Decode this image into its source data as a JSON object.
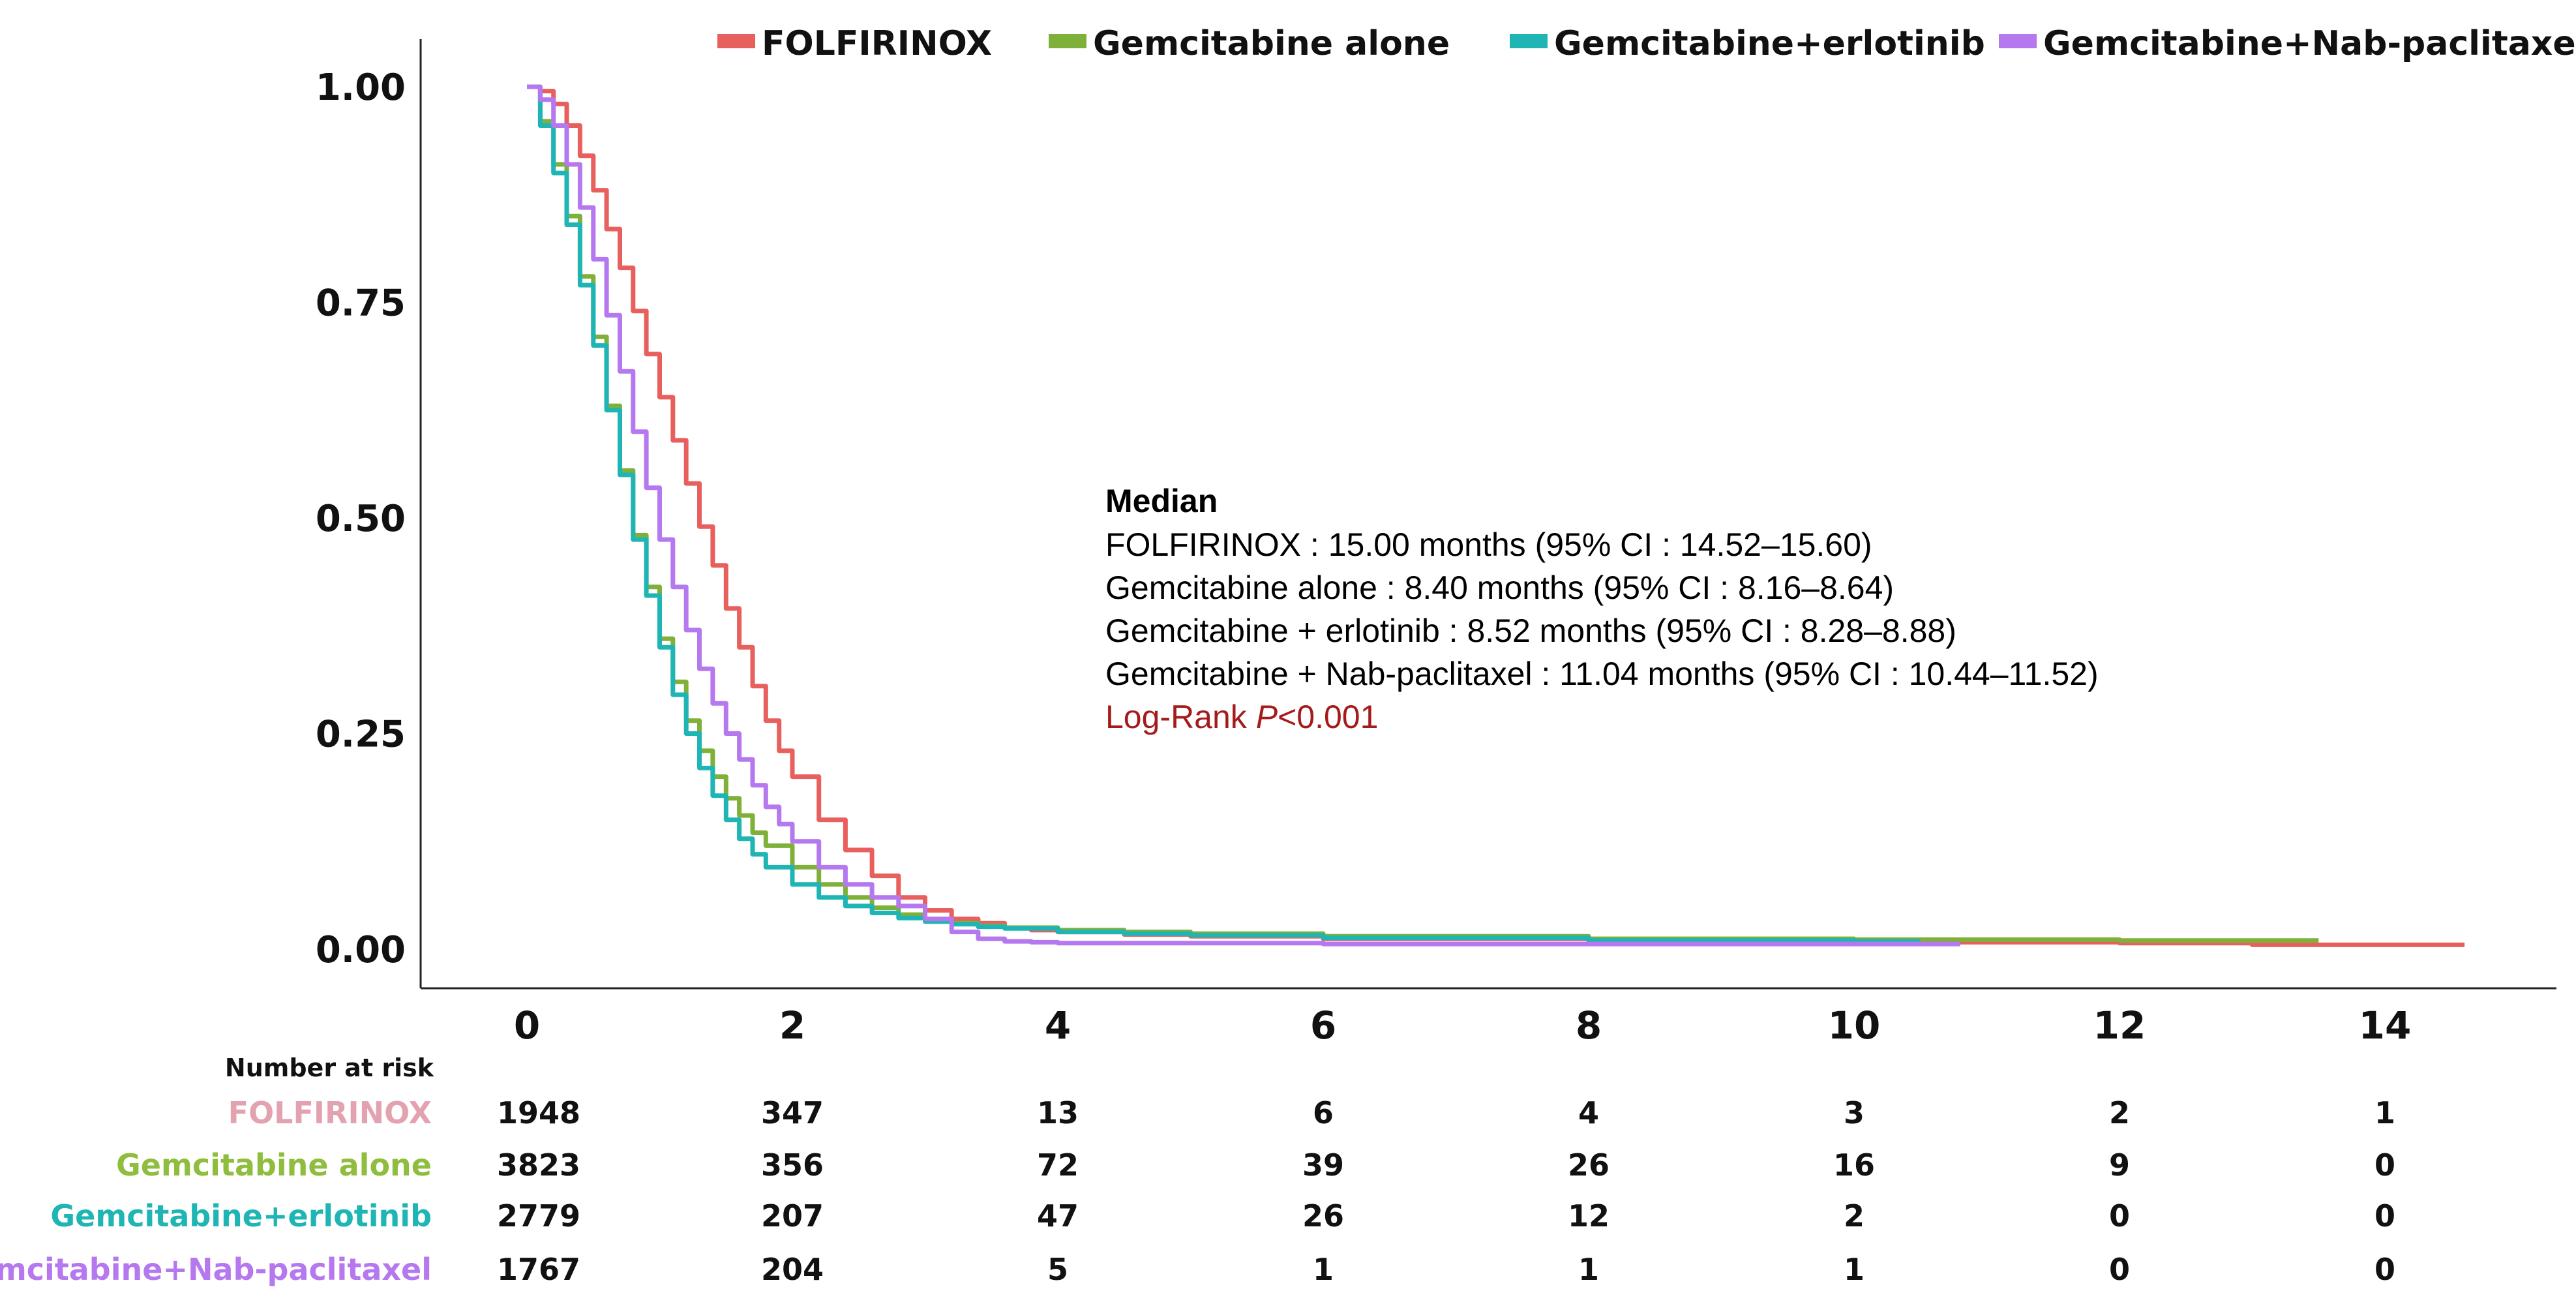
{
  "chart_data": {
    "type": "line",
    "title": "",
    "xlabel": "",
    "ylabel": "",
    "xlim": [
      0,
      14.6
    ],
    "ylim": [
      0,
      1
    ],
    "x_ticks": [
      "0",
      "2",
      "4",
      "6",
      "8",
      "10",
      "12",
      "14"
    ],
    "x_tick_values": [
      0,
      2,
      4,
      6,
      8,
      10,
      12,
      14
    ],
    "y_ticks": [
      "0.00",
      "0.25",
      "0.50",
      "0.75",
      "1.00"
    ],
    "y_tick_values": [
      0,
      0.25,
      0.5,
      0.75,
      1.0
    ],
    "legend_position": "top",
    "series": [
      {
        "name": "FOLFIRINOX",
        "color": "#e8605e",
        "x": [
          0,
          0.1,
          0.2,
          0.3,
          0.4,
          0.5,
          0.6,
          0.7,
          0.8,
          0.9,
          1.0,
          1.1,
          1.2,
          1.3,
          1.4,
          1.5,
          1.6,
          1.7,
          1.8,
          1.9,
          2.0,
          2.2,
          2.4,
          2.6,
          2.8,
          3.0,
          3.2,
          3.4,
          3.6,
          3.8,
          4.0,
          4.5,
          5.0,
          6.0,
          8.0,
          10.0,
          12.0,
          13.0,
          14.0,
          14.6
        ],
        "y": [
          1.0,
          0.995,
          0.98,
          0.955,
          0.92,
          0.88,
          0.835,
          0.79,
          0.74,
          0.69,
          0.64,
          0.59,
          0.54,
          0.49,
          0.445,
          0.395,
          0.35,
          0.305,
          0.265,
          0.23,
          0.2,
          0.15,
          0.115,
          0.085,
          0.06,
          0.045,
          0.035,
          0.03,
          0.025,
          0.022,
          0.02,
          0.017,
          0.015,
          0.012,
          0.01,
          0.008,
          0.007,
          0.005,
          0.005,
          0.005
        ]
      },
      {
        "name": "Gemcitabine alone",
        "color": "#7fb13a",
        "x": [
          0,
          0.1,
          0.2,
          0.3,
          0.4,
          0.5,
          0.6,
          0.7,
          0.8,
          0.9,
          1.0,
          1.1,
          1.2,
          1.3,
          1.4,
          1.5,
          1.6,
          1.7,
          1.8,
          2.0,
          2.2,
          2.4,
          2.6,
          2.8,
          3.0,
          3.2,
          3.4,
          3.6,
          4.0,
          4.5,
          5.0,
          6.0,
          8.0,
          10.0,
          12.0,
          13.5
        ],
        "y": [
          1.0,
          0.96,
          0.91,
          0.85,
          0.78,
          0.71,
          0.63,
          0.555,
          0.48,
          0.42,
          0.36,
          0.31,
          0.265,
          0.23,
          0.2,
          0.175,
          0.155,
          0.135,
          0.12,
          0.095,
          0.075,
          0.06,
          0.048,
          0.04,
          0.034,
          0.03,
          0.027,
          0.025,
          0.022,
          0.02,
          0.018,
          0.015,
          0.012,
          0.011,
          0.01,
          0.01
        ]
      },
      {
        "name": "Gemcitabine+erlotinib",
        "color": "#1fb5b5",
        "x": [
          0,
          0.1,
          0.2,
          0.3,
          0.4,
          0.5,
          0.6,
          0.7,
          0.8,
          0.9,
          1.0,
          1.1,
          1.2,
          1.3,
          1.4,
          1.5,
          1.6,
          1.7,
          1.8,
          2.0,
          2.2,
          2.4,
          2.6,
          2.8,
          3.0,
          3.2,
          3.4,
          3.6,
          4.0,
          4.5,
          5.0,
          6.0,
          8.0,
          10.0,
          10.5
        ],
        "y": [
          1.0,
          0.955,
          0.9,
          0.84,
          0.77,
          0.7,
          0.625,
          0.55,
          0.475,
          0.41,
          0.35,
          0.295,
          0.25,
          0.21,
          0.178,
          0.15,
          0.128,
          0.11,
          0.095,
          0.075,
          0.06,
          0.05,
          0.042,
          0.036,
          0.032,
          0.029,
          0.026,
          0.024,
          0.02,
          0.018,
          0.016,
          0.013,
          0.01,
          0.009,
          0.009
        ]
      },
      {
        "name": "Gemcitabine+Nab-paclitaxel",
        "color": "#b678ef",
        "x": [
          0,
          0.1,
          0.2,
          0.3,
          0.4,
          0.5,
          0.6,
          0.7,
          0.8,
          0.9,
          1.0,
          1.1,
          1.2,
          1.3,
          1.4,
          1.5,
          1.6,
          1.7,
          1.8,
          1.9,
          2.0,
          2.2,
          2.4,
          2.6,
          2.8,
          3.0,
          3.2,
          3.4,
          3.6,
          3.8,
          4.0,
          5.0,
          6.0,
          8.0,
          10.0,
          10.8
        ],
        "y": [
          1.0,
          0.985,
          0.955,
          0.91,
          0.86,
          0.8,
          0.735,
          0.67,
          0.6,
          0.535,
          0.475,
          0.42,
          0.37,
          0.325,
          0.285,
          0.25,
          0.22,
          0.19,
          0.165,
          0.145,
          0.125,
          0.095,
          0.075,
          0.06,
          0.05,
          0.035,
          0.02,
          0.012,
          0.009,
          0.008,
          0.007,
          0.007,
          0.006,
          0.006,
          0.006,
          0.006
        ]
      }
    ],
    "annotation": {
      "title": "Median",
      "lines": [
        "FOLFIRINOX : 15.00 months (95% CI : 14.52–15.60)",
        "Gemcitabine alone : 8.40 months (95% CI : 8.16–8.64)",
        "Gemcitabine + erlotinib : 8.52 months (95% CI : 8.28–8.88)",
        "Gemcitabine + Nab-paclitaxel : 11.04 months (95% CI : 10.44–11.52)"
      ],
      "logrank_prefix": "Log-Rank ",
      "logrank_p": "P",
      "logrank_suffix": "<0.001",
      "logrank_color": "#a51b1b"
    },
    "risk_table": {
      "header": "Number at risk",
      "rows": [
        {
          "label": "FOLFIRINOX",
          "color": "#e3a2b0",
          "values": [
            "1948",
            "347",
            "13",
            "6",
            "4",
            "3",
            "2",
            "1"
          ]
        },
        {
          "label": "Gemcitabine alone",
          "color": "#8fbd3e",
          "values": [
            "3823",
            "356",
            "72",
            "39",
            "26",
            "16",
            "9",
            "0"
          ]
        },
        {
          "label": "Gemcitabine+erlotinib",
          "color": "#1fb5b5",
          "values": [
            "2779",
            "207",
            "47",
            "26",
            "12",
            "2",
            "0",
            "0"
          ]
        },
        {
          "label": "Gemcitabine+Nab-paclitaxel",
          "color": "#b678ef",
          "values": [
            "1767",
            "204",
            "5",
            "1",
            "1",
            "1",
            "0",
            "0"
          ]
        }
      ]
    }
  }
}
